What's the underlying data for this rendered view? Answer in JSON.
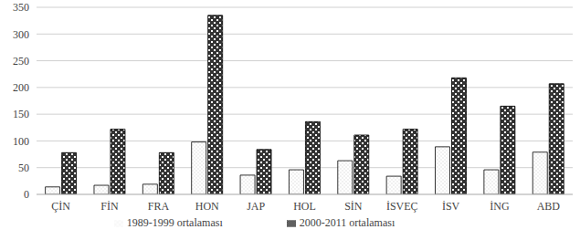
{
  "chart_data": {
    "type": "bar",
    "categories": [
      "ÇİN",
      "FİN",
      "FRA",
      "HON",
      "JAP",
      "HOL",
      "SİN",
      "İSVEÇ",
      "İSV",
      "İNG",
      "ABD"
    ],
    "series": [
      {
        "name": "1989-1999 ortalaması",
        "color": "#d9d9d9",
        "values": [
          14,
          17,
          19,
          98,
          36,
          46,
          63,
          34,
          89,
          46,
          79
        ]
      },
      {
        "name": "2000-2011 ortalaması",
        "color": "#333333",
        "values": [
          78,
          122,
          78,
          335,
          84,
          136,
          111,
          122,
          218,
          165,
          207
        ]
      }
    ],
    "ylim": [
      0,
      350
    ],
    "yticks": [
      0,
      50,
      100,
      150,
      200,
      250,
      300,
      350
    ],
    "grid": true,
    "legend": "bottom"
  }
}
